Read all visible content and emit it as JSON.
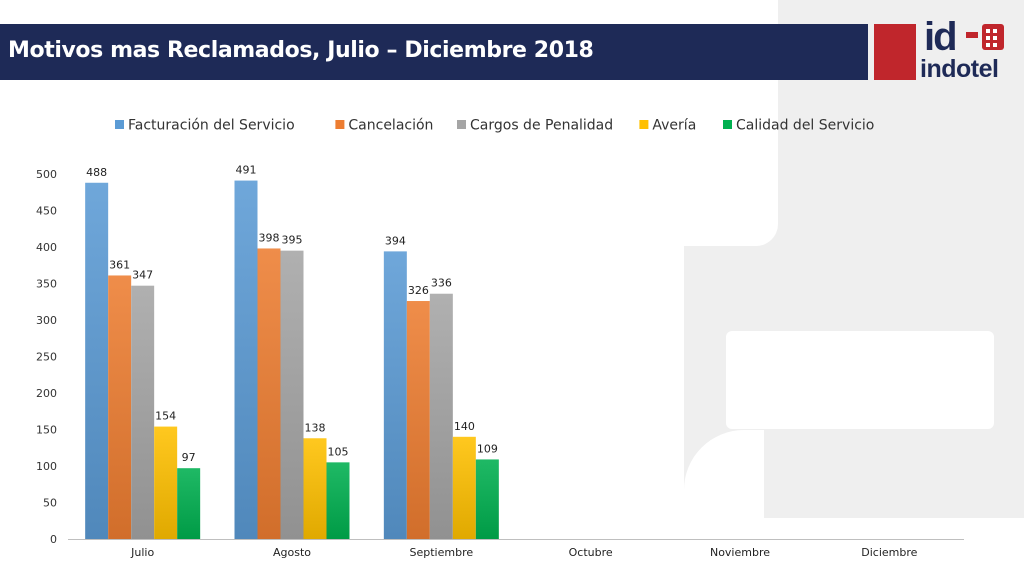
{
  "header": {
    "title": "Motivos mas Reclamados, Julio – Diciembre 2018"
  },
  "logo": {
    "mark": "id",
    "word": "indotel"
  },
  "colors": {
    "title_bar": "#1e2a57",
    "logo_red": "#c0262c"
  },
  "chart_data": {
    "type": "bar",
    "categories": [
      "Julio",
      "Agosto",
      "Septiembre",
      "Octubre",
      "Noviembre",
      "Diciembre"
    ],
    "series": [
      {
        "name": "Facturación del Servicio",
        "color": "#5b9bd5",
        "values": [
          488,
          491,
          394,
          null,
          null,
          null
        ]
      },
      {
        "name": "Cancelación",
        "color": "#ed7d31",
        "values": [
          361,
          398,
          326,
          null,
          null,
          null
        ]
      },
      {
        "name": "Cargos de Penalidad",
        "color": "#a5a5a5",
        "values": [
          347,
          395,
          336,
          null,
          null,
          null
        ]
      },
      {
        "name": "Avería",
        "color": "#ffc000",
        "values": [
          154,
          138,
          140,
          null,
          null,
          null
        ]
      },
      {
        "name": "Calidad del Servicio",
        "color": "#00b050",
        "values": [
          97,
          105,
          109,
          null,
          null,
          null
        ]
      }
    ],
    "yticks": [
      0,
      50,
      100,
      150,
      200,
      250,
      300,
      350,
      400,
      450,
      500
    ],
    "ylim": [
      0,
      500
    ],
    "legend": "top",
    "grid": false,
    "data_labels": true
  }
}
